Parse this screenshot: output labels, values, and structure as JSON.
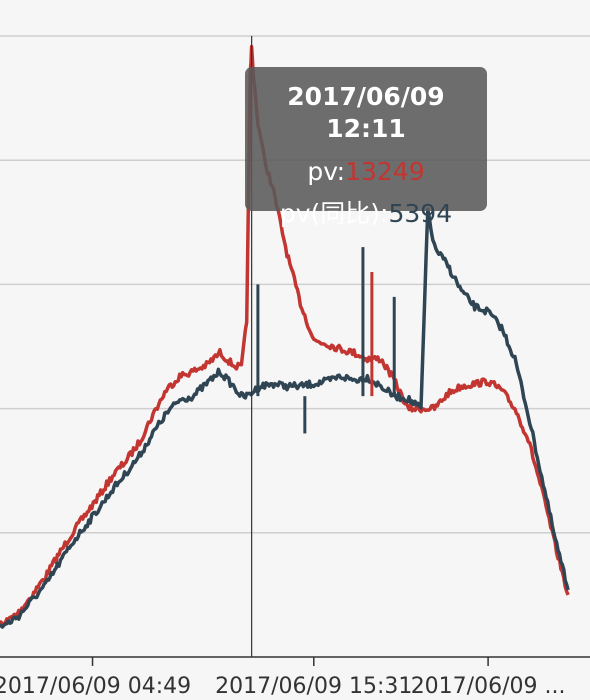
{
  "chart_data": {
    "type": "line",
    "x_tick_labels": [
      "2017/06/09 04:49",
      "2017/06/09 15:31",
      "2017/06/09 ..."
    ],
    "series": [
      {
        "name": "pv",
        "color": "#c23531",
        "points": [
          [
            "00:00",
            3
          ],
          [
            "00:30",
            3
          ],
          [
            "01:00",
            2.6
          ],
          [
            "01:30",
            2.6
          ],
          [
            "02:00",
            2.5
          ],
          [
            "02:30",
            2.6
          ],
          [
            "03:00",
            2.8
          ],
          [
            "03:30",
            3.6
          ],
          [
            "04:00",
            5.0
          ],
          [
            "04:30",
            6.5
          ],
          [
            "05:00",
            8.3
          ],
          [
            "05:30",
            10.0
          ],
          [
            "06:00",
            11.5
          ],
          [
            "06:30",
            13.0
          ],
          [
            "07:00",
            14.6
          ],
          [
            "07:30",
            15.8
          ],
          [
            "08:00",
            17.3
          ],
          [
            "08:30",
            19.5
          ],
          [
            "09:00",
            21.5
          ],
          [
            "09:30",
            22.6
          ],
          [
            "10:00",
            23.0
          ],
          [
            "10:30",
            23.5
          ],
          [
            "11:00",
            24.5
          ],
          [
            "11:30",
            23.5
          ],
          [
            "11:48",
            23.3
          ],
          [
            "12:00",
            27.0
          ],
          [
            "12:05",
            40.0
          ],
          [
            "12:08",
            47.0
          ],
          [
            "12:11",
            49.0
          ],
          [
            "12:15",
            47.0
          ],
          [
            "12:25",
            43.0
          ],
          [
            "12:40",
            40.0
          ],
          [
            "13:00",
            37.5
          ],
          [
            "13:30",
            32.5
          ],
          [
            "14:00",
            28.5
          ],
          [
            "14:30",
            25.5
          ],
          [
            "15:00",
            25.2
          ],
          [
            "15:30",
            24.8
          ],
          [
            "16:00",
            24.5
          ],
          [
            "16:30",
            24.0
          ],
          [
            "17:00",
            24.0
          ],
          [
            "17:30",
            22.3
          ],
          [
            "18:00",
            20.0
          ],
          [
            "18:30",
            20.0
          ],
          [
            "19:00",
            20.0
          ],
          [
            "19:30",
            21.2
          ],
          [
            "20:00",
            21.8
          ],
          [
            "20:30",
            22.0
          ],
          [
            "21:00",
            22.2
          ],
          [
            "21:30",
            21.5
          ],
          [
            "22:00",
            20.0
          ],
          [
            "22:30",
            17.5
          ],
          [
            "23:00",
            13.5
          ],
          [
            "23:30",
            9.0
          ],
          [
            "23:59",
            5.0
          ]
        ]
      },
      {
        "name": "pv(同比)",
        "color": "#2f4554",
        "points": [
          [
            "00:00",
            2.8
          ],
          [
            "00:30",
            2.5
          ],
          [
            "01:00",
            2.4
          ],
          [
            "01:30",
            2.3
          ],
          [
            "02:00",
            2.3
          ],
          [
            "02:30",
            2.4
          ],
          [
            "03:00",
            2.6
          ],
          [
            "03:30",
            3.3
          ],
          [
            "04:00",
            4.6
          ],
          [
            "04:30",
            5.8
          ],
          [
            "05:00",
            7.5
          ],
          [
            "05:30",
            9.2
          ],
          [
            "06:00",
            10.6
          ],
          [
            "06:30",
            12.0
          ],
          [
            "07:00",
            13.5
          ],
          [
            "07:30",
            14.8
          ],
          [
            "08:00",
            16.2
          ],
          [
            "08:30",
            18.0
          ],
          [
            "09:00",
            19.6
          ],
          [
            "09:30",
            20.7
          ],
          [
            "10:00",
            21.0
          ],
          [
            "10:30",
            22.0
          ],
          [
            "11:00",
            23.0
          ],
          [
            "11:30",
            21.8
          ],
          [
            "11:48",
            21.0
          ],
          [
            "12:00",
            21.0
          ],
          [
            "12:30",
            21.8
          ],
          [
            "13:00",
            22.0
          ],
          [
            "13:30",
            21.8
          ],
          [
            "14:00",
            21.8
          ],
          [
            "14:30",
            22.0
          ],
          [
            "15:00",
            22.2
          ],
          [
            "15:30",
            22.6
          ],
          [
            "16:00",
            22.3
          ],
          [
            "16:30",
            22.5
          ],
          [
            "17:00",
            21.8
          ],
          [
            "17:30",
            21.0
          ],
          [
            "18:00",
            20.8
          ],
          [
            "18:30",
            20.0
          ],
          [
            "18:45",
            36.0
          ],
          [
            "19:00",
            33.0
          ],
          [
            "19:30",
            31.5
          ],
          [
            "20:00",
            29.5
          ],
          [
            "20:30",
            28.2
          ],
          [
            "21:00",
            27.8
          ],
          [
            "21:30",
            26.5
          ],
          [
            "22:00",
            24.0
          ],
          [
            "22:30",
            19.5
          ],
          [
            "23:00",
            14.5
          ],
          [
            "23:30",
            9.5
          ],
          [
            "23:59",
            5.4
          ]
        ]
      }
    ],
    "spikes": [
      {
        "series": 1,
        "time": "12:25",
        "value": 30
      },
      {
        "series": 1,
        "time": "16:20",
        "value": 33
      },
      {
        "series": 1,
        "time": "17:30",
        "value": 29
      },
      {
        "series": 0,
        "time": "16:40",
        "value": 31
      },
      {
        "series": 1,
        "time": "14:10",
        "value": 18
      }
    ],
    "y_gridlines": [
      10,
      20,
      30,
      40,
      50
    ],
    "x_ticks": [
      "06:15",
      "14:30",
      "21:00"
    ],
    "cursor_time": "12:11"
  },
  "tooltip": {
    "title": "2017/06/09 12:11",
    "pv_label": "pv:",
    "pv_value": "13249",
    "pv_value_color": "#c23531",
    "yoy_label": "pv(同比):",
    "yoy_value": "5394",
    "yoy_value_color": "#2f4554"
  }
}
